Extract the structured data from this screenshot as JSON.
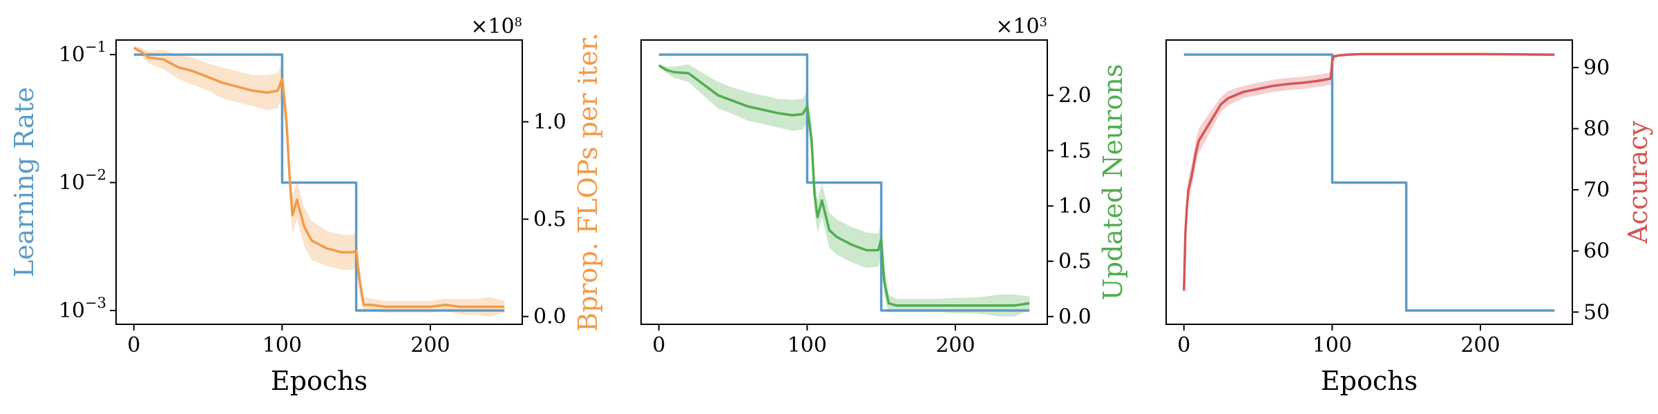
{
  "colors": {
    "lr": "#5b9bc8",
    "flops": "#f39a47",
    "neurons": "#4fae4e",
    "accuracy": "#d65555",
    "axes": "#000000"
  },
  "chart_data": [
    {
      "type": "line",
      "xlabel": "Epochs",
      "xlim": [
        -12,
        262
      ],
      "xticks": [
        0,
        100,
        200
      ],
      "left": {
        "label": "Learning Rate",
        "scale": "log",
        "lim": [
          0.00078,
          0.13
        ],
        "ticks": [
          0.1,
          0.01,
          0.001
        ],
        "tick_labels": [
          "10^−1",
          "10^−2",
          "10^−3"
        ]
      },
      "right": {
        "label": "Bprop. FLOPs per iter.",
        "lim": [
          -0.04,
          1.42
        ],
        "ticks": [
          0.0,
          0.5,
          1.0
        ],
        "tick_labels": [
          "0.0",
          "0.5",
          "1.0"
        ],
        "multiplier": "×10^8"
      },
      "series": [
        {
          "axis": "left",
          "color_key": "lr",
          "x": [
            0,
            100,
            100,
            150,
            150,
            250
          ],
          "y": [
            0.1,
            0.1,
            0.01,
            0.01,
            0.001,
            0.001
          ]
        },
        {
          "axis": "right",
          "color_key": "flops",
          "x": [
            0,
            5,
            10,
            20,
            30,
            40,
            50,
            60,
            70,
            80,
            90,
            97,
            100,
            103,
            105,
            107,
            110,
            115,
            120,
            130,
            140,
            148,
            150,
            152,
            155,
            160,
            170,
            180,
            190,
            200,
            210,
            220,
            230,
            240,
            250
          ],
          "y": [
            1.38,
            1.36,
            1.33,
            1.32,
            1.28,
            1.26,
            1.23,
            1.2,
            1.18,
            1.16,
            1.15,
            1.16,
            1.22,
            1.0,
            0.72,
            0.52,
            0.6,
            0.46,
            0.39,
            0.35,
            0.33,
            0.33,
            0.34,
            0.2,
            0.06,
            0.06,
            0.05,
            0.05,
            0.05,
            0.05,
            0.06,
            0.05,
            0.05,
            0.05,
            0.05
          ],
          "band": [
            0.01,
            0.02,
            0.03,
            0.05,
            0.06,
            0.07,
            0.07,
            0.08,
            0.08,
            0.08,
            0.09,
            0.09,
            0.09,
            0.1,
            0.1,
            0.1,
            0.1,
            0.1,
            0.1,
            0.09,
            0.09,
            0.09,
            0.08,
            0.07,
            0.04,
            0.03,
            0.03,
            0.03,
            0.03,
            0.03,
            0.03,
            0.04,
            0.04,
            0.05,
            0.03
          ]
        }
      ]
    },
    {
      "type": "line",
      "xlabel": "",
      "xlim": [
        -12,
        262
      ],
      "xticks": [
        0,
        100,
        200
      ],
      "left": {
        "label": "",
        "scale": "log",
        "lim": [
          0.00078,
          0.13
        ],
        "ticks": [],
        "tick_labels": []
      },
      "right": {
        "label": "Updated Neurons",
        "lim": [
          -0.07,
          2.5
        ],
        "ticks": [
          0.0,
          0.5,
          1.0,
          1.5,
          2.0
        ],
        "tick_labels": [
          "0.0",
          "0.5",
          "1.0",
          "1.5",
          "2.0"
        ],
        "multiplier": "×10^3"
      },
      "series": [
        {
          "axis": "left",
          "color_key": "lr",
          "x": [
            0,
            100,
            100,
            150,
            150,
            250
          ],
          "y": [
            0.1,
            0.1,
            0.01,
            0.01,
            0.001,
            0.001
          ]
        },
        {
          "axis": "right",
          "color_key": "neurons",
          "x": [
            0,
            5,
            10,
            20,
            30,
            40,
            50,
            60,
            70,
            80,
            90,
            97,
            100,
            103,
            105,
            107,
            110,
            115,
            120,
            130,
            140,
            148,
            150,
            152,
            155,
            160,
            170,
            180,
            190,
            200,
            210,
            220,
            230,
            240,
            250
          ],
          "y": [
            2.27,
            2.23,
            2.21,
            2.2,
            2.1,
            2.0,
            1.95,
            1.9,
            1.87,
            1.84,
            1.82,
            1.83,
            1.9,
            1.6,
            1.1,
            0.9,
            1.05,
            0.78,
            0.72,
            0.65,
            0.6,
            0.6,
            0.7,
            0.32,
            0.12,
            0.1,
            0.1,
            0.1,
            0.1,
            0.1,
            0.1,
            0.1,
            0.1,
            0.1,
            0.12
          ],
          "band": [
            0.01,
            0.03,
            0.05,
            0.08,
            0.1,
            0.12,
            0.12,
            0.13,
            0.13,
            0.13,
            0.14,
            0.14,
            0.14,
            0.15,
            0.15,
            0.15,
            0.15,
            0.16,
            0.16,
            0.16,
            0.16,
            0.15,
            0.15,
            0.12,
            0.08,
            0.06,
            0.06,
            0.06,
            0.06,
            0.07,
            0.07,
            0.08,
            0.1,
            0.1,
            0.06
          ]
        }
      ]
    },
    {
      "type": "line",
      "xlabel": "Epochs",
      "xlim": [
        -12,
        262
      ],
      "xticks": [
        0,
        100,
        200
      ],
      "left": {
        "label": "",
        "scale": "log",
        "lim": [
          0.00078,
          0.13
        ],
        "ticks": [],
        "tick_labels": []
      },
      "right": {
        "label": "Accuracy",
        "lim": [
          48,
          94.5
        ],
        "ticks": [
          50,
          60,
          70,
          80,
          90
        ],
        "tick_labels": [
          "50",
          "60",
          "70",
          "80",
          "90"
        ],
        "multiplier": ""
      },
      "series": [
        {
          "axis": "left",
          "color_key": "lr",
          "x": [
            0,
            100,
            100,
            150,
            150,
            250
          ],
          "y": [
            0.1,
            0.1,
            0.01,
            0.01,
            0.001,
            0.001
          ]
        },
        {
          "axis": "right",
          "color_key": "accuracy",
          "x": [
            0,
            1,
            2,
            3,
            5,
            8,
            10,
            15,
            20,
            25,
            30,
            40,
            50,
            60,
            70,
            80,
            90,
            95,
            99,
            100,
            101,
            105,
            110,
            120,
            150,
            200,
            250
          ],
          "y": [
            53.5,
            63,
            67,
            70,
            72,
            76,
            78,
            80,
            82,
            84,
            85,
            86,
            86.5,
            87,
            87.3,
            87.5,
            87.8,
            88,
            88.2,
            91,
            91.8,
            92,
            92.1,
            92.2,
            92.2,
            92.2,
            92.1
          ],
          "band": [
            1.5,
            2,
            2,
            2,
            2,
            2,
            2,
            1.8,
            1.5,
            1.2,
            1.2,
            1,
            1,
            1,
            1,
            1,
            1,
            1,
            1,
            0.6,
            0.3,
            0.2,
            0.2,
            0.2,
            0.2,
            0.2,
            0.2
          ]
        }
      ]
    }
  ]
}
